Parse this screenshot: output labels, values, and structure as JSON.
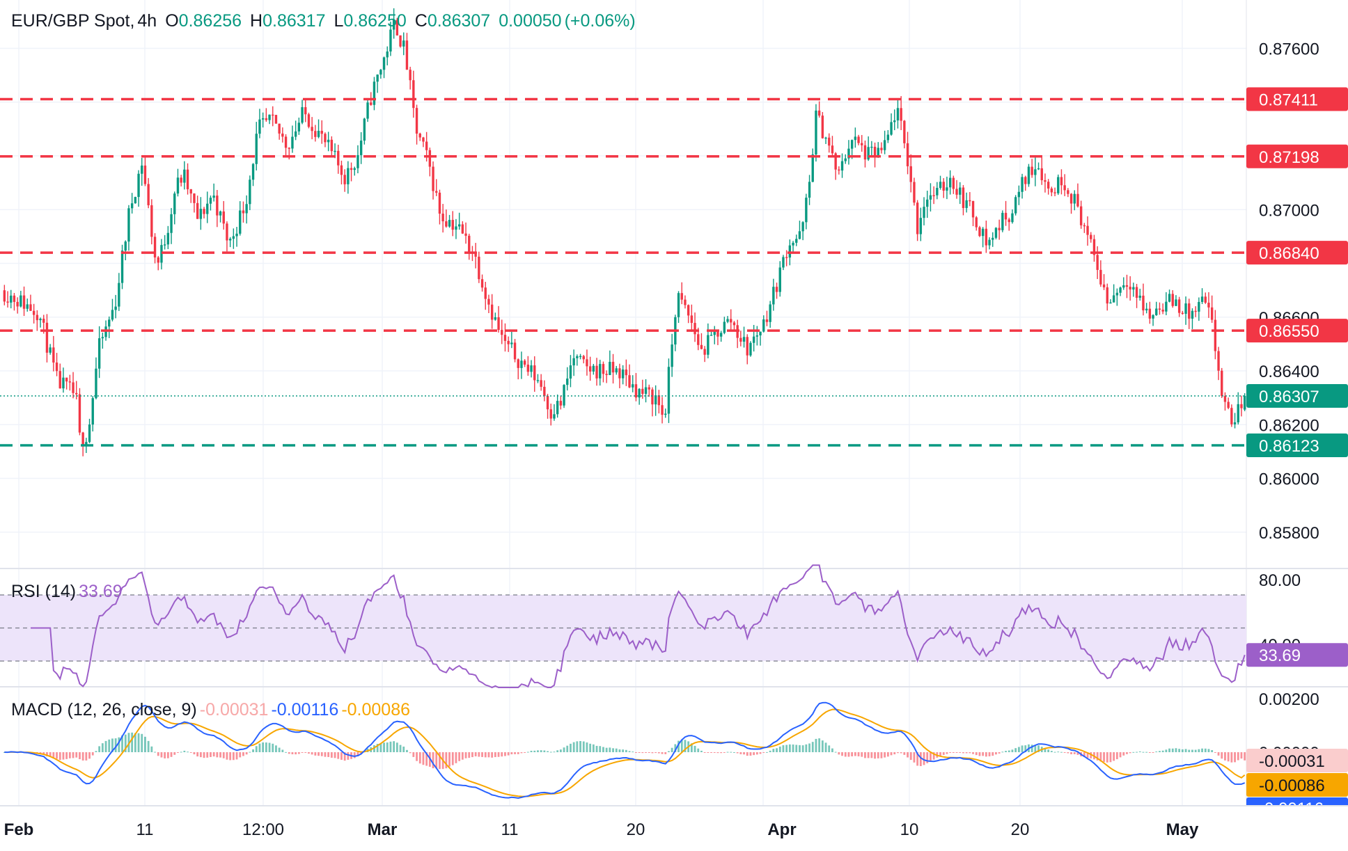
{
  "header": {
    "symbol": "EUR/GBP Spot",
    "timeframe": "4h",
    "o_label": "O",
    "o_value": "0.86256",
    "h_label": "H",
    "h_value": "0.86317",
    "l_label": "L",
    "l_value": "0.86250",
    "c_label": "C",
    "c_value": "0.86307",
    "change": "0.00050",
    "change_pct": "(+0.06%)"
  },
  "colors": {
    "up": "#089981",
    "down": "#f23645",
    "resistance": "#f23645",
    "support": "#089981",
    "rsi": "#9c5fc9",
    "rsi_band": "#ede4fa",
    "macd": "#2962ff",
    "signal": "#f7a600",
    "hist_up": "#089981",
    "hist_down": "#f23645",
    "grid": "#f0f3fa"
  },
  "rsi": {
    "label": "RSI (14)",
    "value": "33.69",
    "tick_top": "80.00",
    "tick_mid": "40.00"
  },
  "macd": {
    "label": "MACD (12, 26, close, 9)",
    "hist_value": "-0.00031",
    "macd_value": "-0.00116",
    "signal_value": "-0.00086",
    "tick_top": "0.00200",
    "tick_zero": "0.00000",
    "badge_hist": "-0.00031",
    "badge_signal": "-0.00086",
    "badge_macd": "-0.00116"
  },
  "chart_data": {
    "type": "candlestick",
    "title": "EUR/GBP Spot, 4h",
    "x_labels": [
      "Feb",
      "11",
      "12:00",
      "Mar",
      "11",
      "20",
      "Apr",
      "10",
      "20",
      "May"
    ],
    "y_ticks": [
      "0.87600",
      "0.87000",
      "0.86600",
      "0.86400",
      "0.86200",
      "0.86000",
      "0.85800"
    ],
    "ylim": [
      0.8567,
      0.8778
    ],
    "grid": true,
    "horizontal_levels": [
      {
        "price": 0.87411,
        "label": "0.87411",
        "kind": "resistance"
      },
      {
        "price": 0.87198,
        "label": "0.87198",
        "kind": "resistance"
      },
      {
        "price": 0.8684,
        "label": "0.86840",
        "kind": "resistance"
      },
      {
        "price": 0.8655,
        "label": "0.86550",
        "kind": "resistance"
      },
      {
        "price": 0.86123,
        "label": "0.86123",
        "kind": "support"
      }
    ],
    "last_price": {
      "price": 0.86307,
      "label": "0.86307"
    },
    "path": [
      [
        0,
        0.867
      ],
      [
        18,
        0.8662
      ],
      [
        27,
        0.8636
      ],
      [
        36,
        0.8631
      ],
      [
        38,
        0.8614
      ],
      [
        42,
        0.8617
      ],
      [
        47,
        0.8648
      ],
      [
        55,
        0.8665
      ],
      [
        62,
        0.87
      ],
      [
        68,
        0.8718
      ],
      [
        75,
        0.8678
      ],
      [
        80,
        0.8692
      ],
      [
        84,
        0.8708
      ],
      [
        88,
        0.8713
      ],
      [
        95,
        0.8696
      ],
      [
        102,
        0.8706
      ],
      [
        110,
        0.8687
      ],
      [
        118,
        0.8703
      ],
      [
        124,
        0.873
      ],
      [
        130,
        0.8733
      ],
      [
        138,
        0.8724
      ],
      [
        146,
        0.8736
      ],
      [
        152,
        0.873
      ],
      [
        160,
        0.872
      ],
      [
        166,
        0.8712
      ],
      [
        172,
        0.872
      ],
      [
        178,
        0.8741
      ],
      [
        185,
        0.8757
      ],
      [
        190,
        0.877
      ],
      [
        195,
        0.8758
      ],
      [
        200,
        0.873
      ],
      [
        206,
        0.8718
      ],
      [
        212,
        0.8698
      ],
      [
        220,
        0.8694
      ],
      [
        228,
        0.8684
      ],
      [
        235,
        0.8666
      ],
      [
        242,
        0.8651
      ],
      [
        250,
        0.8644
      ],
      [
        260,
        0.8636
      ],
      [
        265,
        0.8625
      ],
      [
        270,
        0.8628
      ],
      [
        276,
        0.8645
      ],
      [
        282,
        0.8641
      ],
      [
        290,
        0.864
      ],
      [
        298,
        0.864
      ],
      [
        308,
        0.8632
      ],
      [
        316,
        0.863
      ],
      [
        320,
        0.8622
      ],
      [
        326,
        0.8668
      ],
      [
        332,
        0.866
      ],
      [
        338,
        0.8647
      ],
      [
        346,
        0.8655
      ],
      [
        352,
        0.8659
      ],
      [
        360,
        0.8648
      ],
      [
        368,
        0.8658
      ],
      [
        374,
        0.8672
      ],
      [
        380,
        0.8688
      ],
      [
        386,
        0.869
      ],
      [
        390,
        0.871
      ],
      [
        393,
        0.8735
      ],
      [
        398,
        0.8727
      ],
      [
        404,
        0.8712
      ],
      [
        410,
        0.8727
      ],
      [
        418,
        0.872
      ],
      [
        426,
        0.8722
      ],
      [
        432,
        0.8738
      ],
      [
        438,
        0.8716
      ],
      [
        442,
        0.8693
      ],
      [
        446,
        0.8705
      ],
      [
        452,
        0.8706
      ],
      [
        458,
        0.8712
      ],
      [
        464,
        0.8704
      ],
      [
        470,
        0.8697
      ],
      [
        476,
        0.8687
      ],
      [
        482,
        0.8695
      ],
      [
        488,
        0.87
      ],
      [
        494,
        0.8712
      ],
      [
        500,
        0.8718
      ],
      [
        506,
        0.8706
      ],
      [
        512,
        0.8712
      ],
      [
        516,
        0.8706
      ],
      [
        520,
        0.87
      ],
      [
        526,
        0.8685
      ],
      [
        530,
        0.8676
      ],
      [
        534,
        0.8665
      ],
      [
        538,
        0.867
      ],
      [
        544,
        0.8675
      ],
      [
        548,
        0.8668
      ],
      [
        554,
        0.866
      ],
      [
        560,
        0.8665
      ],
      [
        566,
        0.8666
      ],
      [
        574,
        0.866
      ],
      [
        580,
        0.8666
      ],
      [
        584,
        0.8658
      ],
      [
        590,
        0.8626
      ],
      [
        595,
        0.8621
      ],
      [
        600,
        0.8631
      ]
    ]
  }
}
